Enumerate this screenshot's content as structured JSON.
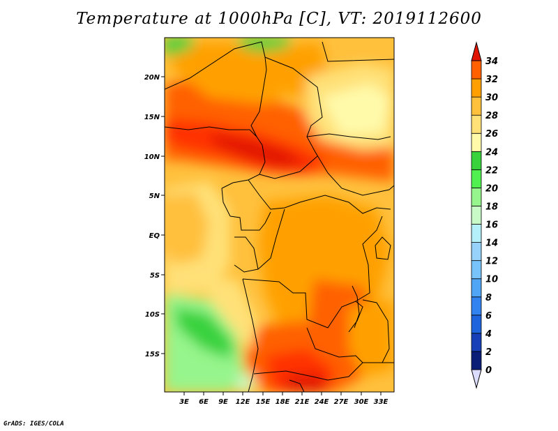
{
  "title": "Temperature at 1000hPa [C], VT: 2019112600",
  "credit": "GrADS: IGES/COLA",
  "map": {
    "lat_labels": [
      "20N",
      "15N",
      "10N",
      "5N",
      "EQ",
      "5S",
      "10S",
      "15S"
    ],
    "lon_labels": [
      "3E",
      "6E",
      "9E",
      "12E",
      "15E",
      "18E",
      "21E",
      "24E",
      "27E",
      "30E",
      "33E"
    ],
    "lat_range": [
      -19.5,
      24.5
    ],
    "lon_range": [
      0,
      35
    ]
  },
  "colorbar": {
    "levels": [
      "0",
      "2",
      "4",
      "6",
      "8",
      "10",
      "12",
      "14",
      "16",
      "18",
      "20",
      "22",
      "24",
      "26",
      "28",
      "30",
      "32",
      "34"
    ],
    "colors": [
      "#0a1e78",
      "#1740b8",
      "#1e64dc",
      "#3282f0",
      "#50a5f5",
      "#78c3fa",
      "#96d2fa",
      "#b4f0fa",
      "#c8fac8",
      "#96f58c",
      "#50f050",
      "#37d23c",
      "#fffaaa",
      "#ffe178",
      "#ffc03c",
      "#ffa000",
      "#ff6000",
      "#ff3200",
      "#e11400"
    ],
    "under_color": "#dcdcff",
    "over_color": "#e11400"
  }
}
